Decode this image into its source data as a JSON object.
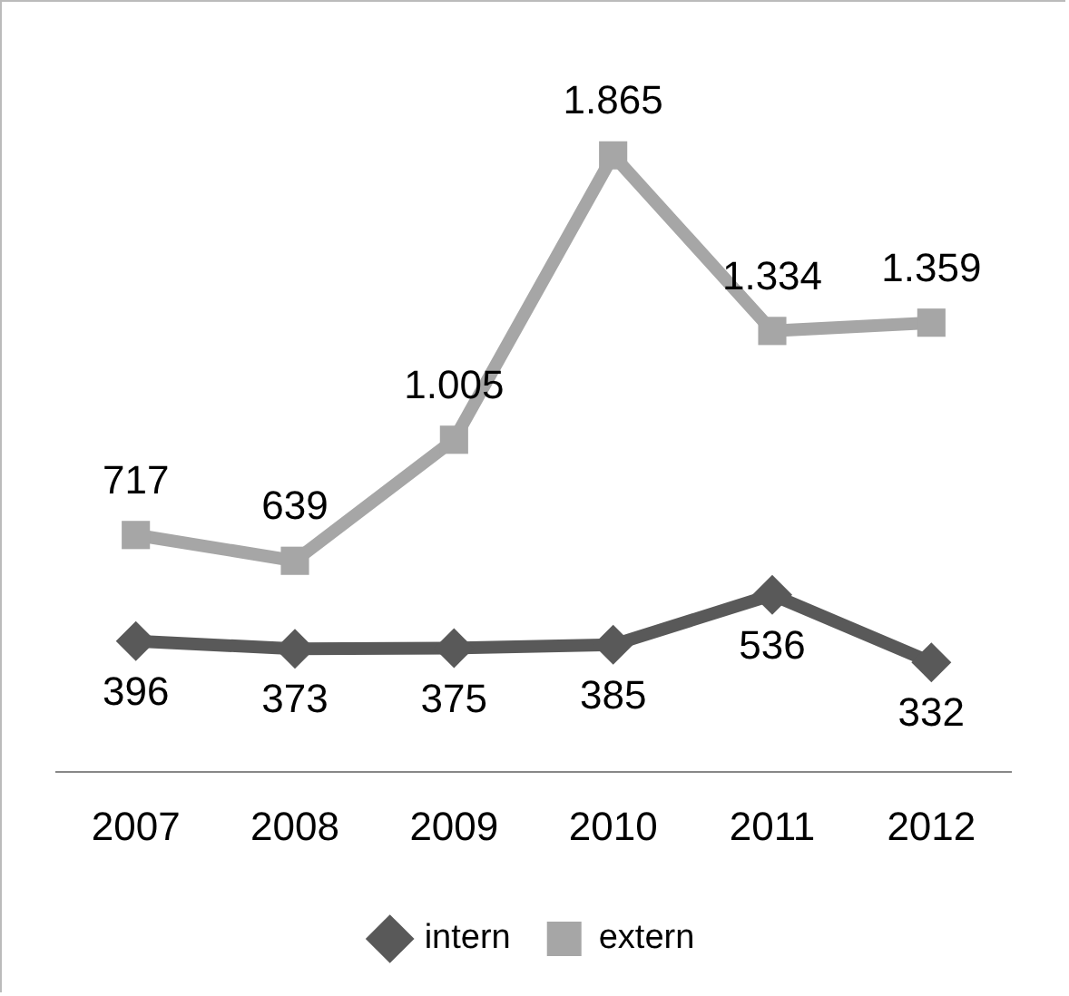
{
  "chart_data": {
    "type": "line",
    "categories": [
      "2007",
      "2008",
      "2009",
      "2010",
      "2011",
      "2012"
    ],
    "series": [
      {
        "name": "intern",
        "color": "#595959",
        "marker": "diamond",
        "values": [
          396,
          373,
          375,
          385,
          536,
          332
        ],
        "value_labels": [
          "396",
          "373",
          "375",
          "385",
          "536",
          "332"
        ]
      },
      {
        "name": "extern",
        "color": "#a6a6a6",
        "marker": "square",
        "values": [
          717,
          639,
          1005,
          1865,
          1334,
          1359
        ],
        "value_labels": [
          "717",
          "639",
          "1.005",
          "1.865",
          "1.334",
          "1.359"
        ]
      }
    ],
    "legend": "bottom",
    "line_style": "solid"
  }
}
